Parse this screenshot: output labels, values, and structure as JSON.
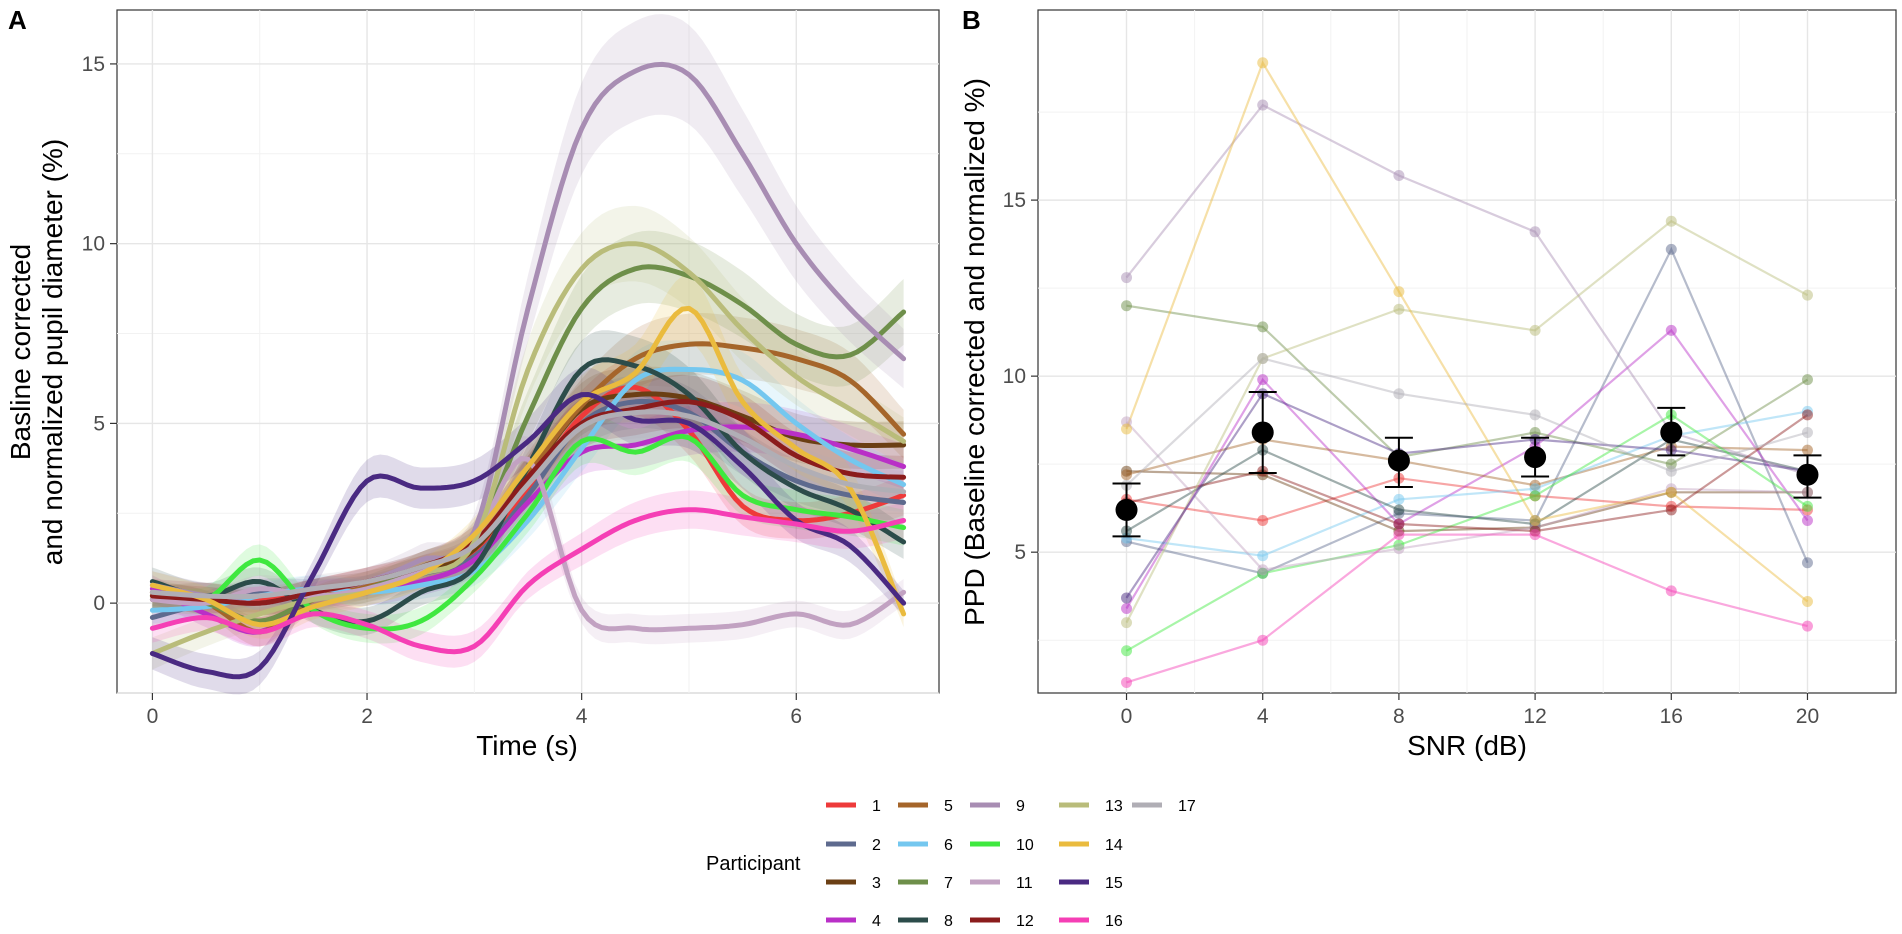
{
  "chart_data": [
    {
      "type": "line",
      "panel": "A",
      "xlabel": "Time (s)",
      "ylabel_lines": [
        "Basline corrected",
        "and normalized pupil diameter (%)"
      ],
      "xlim": [
        -0.33,
        7.33
      ],
      "ylim": [
        -2.5,
        16.5
      ],
      "xticks": [
        0,
        2,
        4,
        6
      ],
      "yticks": [
        0,
        5,
        10,
        15
      ],
      "grid": true,
      "series": [
        {
          "name": "1",
          "x": [
            0,
            0.5,
            1,
            1.5,
            2,
            2.5,
            3,
            3.5,
            4,
            4.5,
            5,
            5.5,
            6,
            6.5,
            7
          ],
          "y": [
            0.3,
            0.2,
            0.1,
            0.3,
            0.6,
            0.9,
            1.4,
            3.2,
            5.2,
            6.0,
            4.8,
            2.7,
            2.3,
            2.5,
            3.0
          ]
        },
        {
          "name": "2",
          "x": [
            0,
            0.5,
            1,
            1.5,
            2,
            2.5,
            3,
            3.5,
            4,
            4.5,
            5,
            5.5,
            6,
            6.5,
            7
          ],
          "y": [
            -0.4,
            0.0,
            0.3,
            0.3,
            0.4,
            0.8,
            1.3,
            3.0,
            5.0,
            5.6,
            5.3,
            4.2,
            3.4,
            3.0,
            2.8
          ]
        },
        {
          "name": "3",
          "x": [
            0,
            0.5,
            1,
            1.5,
            2,
            2.5,
            3,
            3.5,
            4,
            4.5,
            5,
            5.5,
            6,
            6.5,
            7
          ],
          "y": [
            0.1,
            0.2,
            0.0,
            0.3,
            0.5,
            0.9,
            1.5,
            3.5,
            5.4,
            5.8,
            5.7,
            5.2,
            4.6,
            4.4,
            4.4
          ]
        },
        {
          "name": "4",
          "x": [
            0,
            0.5,
            1,
            1.5,
            2,
            2.5,
            3,
            3.5,
            4,
            4.5,
            5,
            5.5,
            6,
            6.5,
            7
          ],
          "y": [
            0.4,
            -0.3,
            -0.8,
            0.2,
            0.3,
            0.6,
            1.2,
            2.8,
            4.2,
            4.4,
            4.8,
            4.9,
            4.7,
            4.3,
            3.8
          ]
        },
        {
          "name": "5",
          "x": [
            0,
            0.5,
            1,
            1.5,
            2,
            2.5,
            3,
            3.5,
            4,
            4.5,
            5,
            5.5,
            6,
            6.5,
            7
          ],
          "y": [
            0.2,
            0.0,
            -0.8,
            0.1,
            0.5,
            1.0,
            1.6,
            3.6,
            5.5,
            6.8,
            7.2,
            7.1,
            6.8,
            6.2,
            4.7
          ]
        },
        {
          "name": "6",
          "x": [
            0,
            0.5,
            1,
            1.5,
            2,
            2.5,
            3,
            3.5,
            4,
            4.5,
            5,
            5.5,
            6,
            6.5,
            7
          ],
          "y": [
            -0.2,
            -0.1,
            0.2,
            0.4,
            0.3,
            0.5,
            0.9,
            2.3,
            4.3,
            6.2,
            6.5,
            6.2,
            5.0,
            4.0,
            3.3
          ]
        },
        {
          "name": "7",
          "x": [
            0,
            0.5,
            1,
            1.5,
            2,
            2.5,
            3,
            3.5,
            4,
            4.5,
            5,
            5.5,
            6,
            6.5,
            7
          ],
          "y": [
            0.3,
            0.0,
            -0.5,
            0.1,
            0.4,
            1.0,
            1.8,
            5.2,
            8.2,
            9.3,
            9.1,
            8.3,
            7.2,
            6.9,
            8.1
          ]
        },
        {
          "name": "8",
          "x": [
            0,
            0.5,
            1,
            1.5,
            2,
            2.5,
            3,
            3.5,
            4,
            4.5,
            5,
            5.5,
            6,
            6.5,
            7
          ],
          "y": [
            0.6,
            0.2,
            0.6,
            -0.2,
            -0.5,
            0.3,
            1.0,
            3.8,
            6.5,
            6.6,
            5.8,
            4.2,
            3.2,
            2.6,
            1.7
          ]
        },
        {
          "name": "9",
          "x": [
            0,
            0.5,
            1,
            1.5,
            2,
            2.5,
            3,
            3.5,
            4,
            4.5,
            5,
            5.5,
            6,
            6.5,
            7
          ],
          "y": [
            0.5,
            0.2,
            0.0,
            0.3,
            0.6,
            1.2,
            2.0,
            8.2,
            13.2,
            14.8,
            14.7,
            12.5,
            10.0,
            8.2,
            6.8
          ]
        },
        {
          "name": "10",
          "x": [
            0,
            0.5,
            1,
            1.5,
            2,
            2.5,
            3,
            3.5,
            4,
            4.5,
            5,
            5.5,
            6,
            6.5,
            7
          ],
          "y": [
            0.2,
            0.1,
            1.2,
            -0.2,
            -0.7,
            -0.5,
            0.7,
            2.5,
            4.5,
            4.2,
            4.6,
            3.0,
            2.6,
            2.4,
            2.1
          ]
        },
        {
          "name": "11",
          "x": [
            0,
            0.5,
            1,
            1.5,
            2,
            2.5,
            3,
            3.5,
            4,
            4.5,
            5,
            5.5,
            6,
            6.5,
            7
          ],
          "y": [
            0.1,
            0.0,
            0.4,
            0.2,
            0.4,
            0.9,
            1.8,
            4.0,
            -0.2,
            -0.7,
            -0.7,
            -0.6,
            -0.3,
            -0.6,
            0.3
          ]
        },
        {
          "name": "12",
          "x": [
            0,
            0.5,
            1,
            1.5,
            2,
            2.5,
            3,
            3.5,
            4,
            4.5,
            5,
            5.5,
            6,
            6.5,
            7
          ],
          "y": [
            0.2,
            0.1,
            0.0,
            0.3,
            0.6,
            1.0,
            1.7,
            3.5,
            5.0,
            5.4,
            5.6,
            5.1,
            4.1,
            3.6,
            3.5
          ]
        },
        {
          "name": "13",
          "x": [
            0,
            0.5,
            1,
            1.5,
            2,
            2.5,
            3,
            3.5,
            4,
            4.5,
            5,
            5.5,
            6,
            6.5,
            7
          ],
          "y": [
            -1.4,
            -0.8,
            -0.3,
            0.1,
            0.3,
            0.8,
            1.7,
            6.5,
            9.3,
            10.0,
            9.2,
            7.6,
            6.3,
            5.4,
            4.5
          ]
        },
        {
          "name": "14",
          "x": [
            0,
            0.5,
            1,
            1.5,
            2,
            2.5,
            3,
            3.5,
            4,
            4.5,
            5,
            5.5,
            6,
            6.5,
            7
          ],
          "y": [
            0.5,
            0.1,
            -0.6,
            -0.1,
            0.3,
            0.8,
            1.9,
            3.8,
            5.6,
            6.4,
            8.2,
            5.6,
            4.3,
            3.2,
            -0.3
          ]
        },
        {
          "name": "15",
          "x": [
            0,
            0.5,
            1,
            1.5,
            2,
            2.5,
            3,
            3.5,
            4,
            4.5,
            5,
            5.5,
            6,
            6.5,
            7
          ],
          "y": [
            -1.4,
            -1.9,
            -1.8,
            0.8,
            3.4,
            3.2,
            3.4,
            4.5,
            5.8,
            5.1,
            5.0,
            3.8,
            2.3,
            1.6,
            0.0
          ]
        },
        {
          "name": "16",
          "x": [
            0,
            0.5,
            1,
            1.5,
            2,
            2.5,
            3,
            3.5,
            4,
            4.5,
            5,
            5.5,
            6,
            6.5,
            7
          ],
          "y": [
            -0.7,
            -0.4,
            -0.8,
            -0.3,
            -0.6,
            -1.2,
            -1.2,
            0.5,
            1.5,
            2.3,
            2.6,
            2.4,
            2.2,
            2.0,
            2.3
          ]
        },
        {
          "name": "17",
          "x": [
            0,
            0.5,
            1,
            1.5,
            2,
            2.5,
            3,
            3.5,
            4,
            4.5,
            5,
            5.5,
            6,
            6.5,
            7
          ],
          "y": [
            0.3,
            0.2,
            0.2,
            0.4,
            0.6,
            1.0,
            1.6,
            3.3,
            4.9,
            5.3,
            5.2,
            4.6,
            3.8,
            3.3,
            3.1
          ]
        }
      ]
    },
    {
      "type": "line",
      "panel": "B",
      "xlabel": "SNR (dB)",
      "ylabel": "PPD (Baseline corrected and normalized %)",
      "xlim": [
        -2.6,
        22.6
      ],
      "ylim": [
        1.0,
        20.4
      ],
      "xticks": [
        0,
        4,
        8,
        12,
        16,
        20
      ],
      "yticks": [
        5,
        10,
        15
      ],
      "grid": true,
      "categories": [
        0,
        4,
        8,
        12,
        16,
        20
      ],
      "series": [
        {
          "name": "1",
          "values": [
            6.5,
            5.9,
            7.1,
            6.6,
            6.3,
            6.2
          ]
        },
        {
          "name": "2",
          "values": [
            5.3,
            4.4,
            6.1,
            5.9,
            13.6,
            4.7
          ]
        },
        {
          "name": "3",
          "values": [
            7.3,
            7.2,
            5.6,
            5.7,
            6.7,
            6.7
          ]
        },
        {
          "name": "4",
          "values": [
            3.4,
            9.9,
            5.8,
            8.0,
            11.3,
            5.9
          ]
        },
        {
          "name": "5",
          "values": [
            7.2,
            8.2,
            7.6,
            6.9,
            8.0,
            7.9
          ]
        },
        {
          "name": "6",
          "values": [
            5.4,
            4.9,
            6.5,
            6.8,
            8.3,
            9.0
          ]
        },
        {
          "name": "7",
          "values": [
            12.0,
            11.4,
            7.7,
            8.4,
            7.5,
            9.9
          ]
        },
        {
          "name": "8",
          "values": [
            5.6,
            7.9,
            6.2,
            5.8,
            8.2,
            7.3
          ]
        },
        {
          "name": "9",
          "values": [
            12.8,
            17.7,
            15.7,
            14.1,
            8.4,
            7.2
          ]
        },
        {
          "name": "10",
          "values": [
            2.2,
            4.4,
            5.2,
            6.6,
            8.9,
            6.3
          ]
        },
        {
          "name": "11",
          "values": [
            8.7,
            4.5,
            5.1,
            5.7,
            6.8,
            6.7
          ]
        },
        {
          "name": "12",
          "values": [
            6.4,
            7.3,
            5.8,
            5.6,
            6.2,
            8.9
          ]
        },
        {
          "name": "13",
          "values": [
            3.0,
            10.5,
            11.9,
            11.3,
            14.4,
            12.3
          ]
        },
        {
          "name": "14",
          "values": [
            8.5,
            18.9,
            12.4,
            5.9,
            6.7,
            3.6
          ]
        },
        {
          "name": "15",
          "values": [
            3.7,
            9.5,
            7.8,
            8.2,
            7.9,
            7.3
          ]
        },
        {
          "name": "16",
          "values": [
            1.3,
            2.5,
            5.5,
            5.5,
            3.9,
            2.9
          ]
        },
        {
          "name": "17",
          "values": [
            6.9,
            10.5,
            9.5,
            8.9,
            7.3,
            8.4
          ]
        }
      ],
      "mean": {
        "values": [
          6.2,
          8.4,
          7.6,
          7.7,
          8.4,
          7.2
        ],
        "lower": [
          5.45,
          7.25,
          6.85,
          7.15,
          7.75,
          6.55
        ],
        "upper": [
          6.95,
          9.55,
          8.25,
          8.25,
          9.1,
          7.75
        ]
      }
    }
  ],
  "legend": {
    "title": "Participant",
    "placement": "bottom",
    "columns": [
      [
        "1",
        "2",
        "3",
        "4"
      ],
      [
        "5",
        "6",
        "7",
        "8"
      ],
      [
        "9",
        "10",
        "11",
        "12"
      ],
      [
        "13",
        "14",
        "15",
        "16"
      ],
      [
        "17"
      ]
    ]
  },
  "panel_labels": {
    "a": "A",
    "b": "B"
  },
  "colors": {
    "1": "#ee3a3a",
    "2": "#5e6a8e",
    "3": "#6b3f14",
    "4": "#b92fc7",
    "5": "#a5652a",
    "6": "#74c7ef",
    "7": "#6e8f4a",
    "8": "#2c4c4a",
    "9": "#a88db3",
    "10": "#3fe83f",
    "11": "#c2a2c2",
    "12": "#8b1c1c",
    "13": "#b9bc7a",
    "14": "#eabb3e",
    "15": "#4a2a82",
    "16": "#f53fb5",
    "17": "#b0aeb5",
    "mean": "#000000"
  }
}
